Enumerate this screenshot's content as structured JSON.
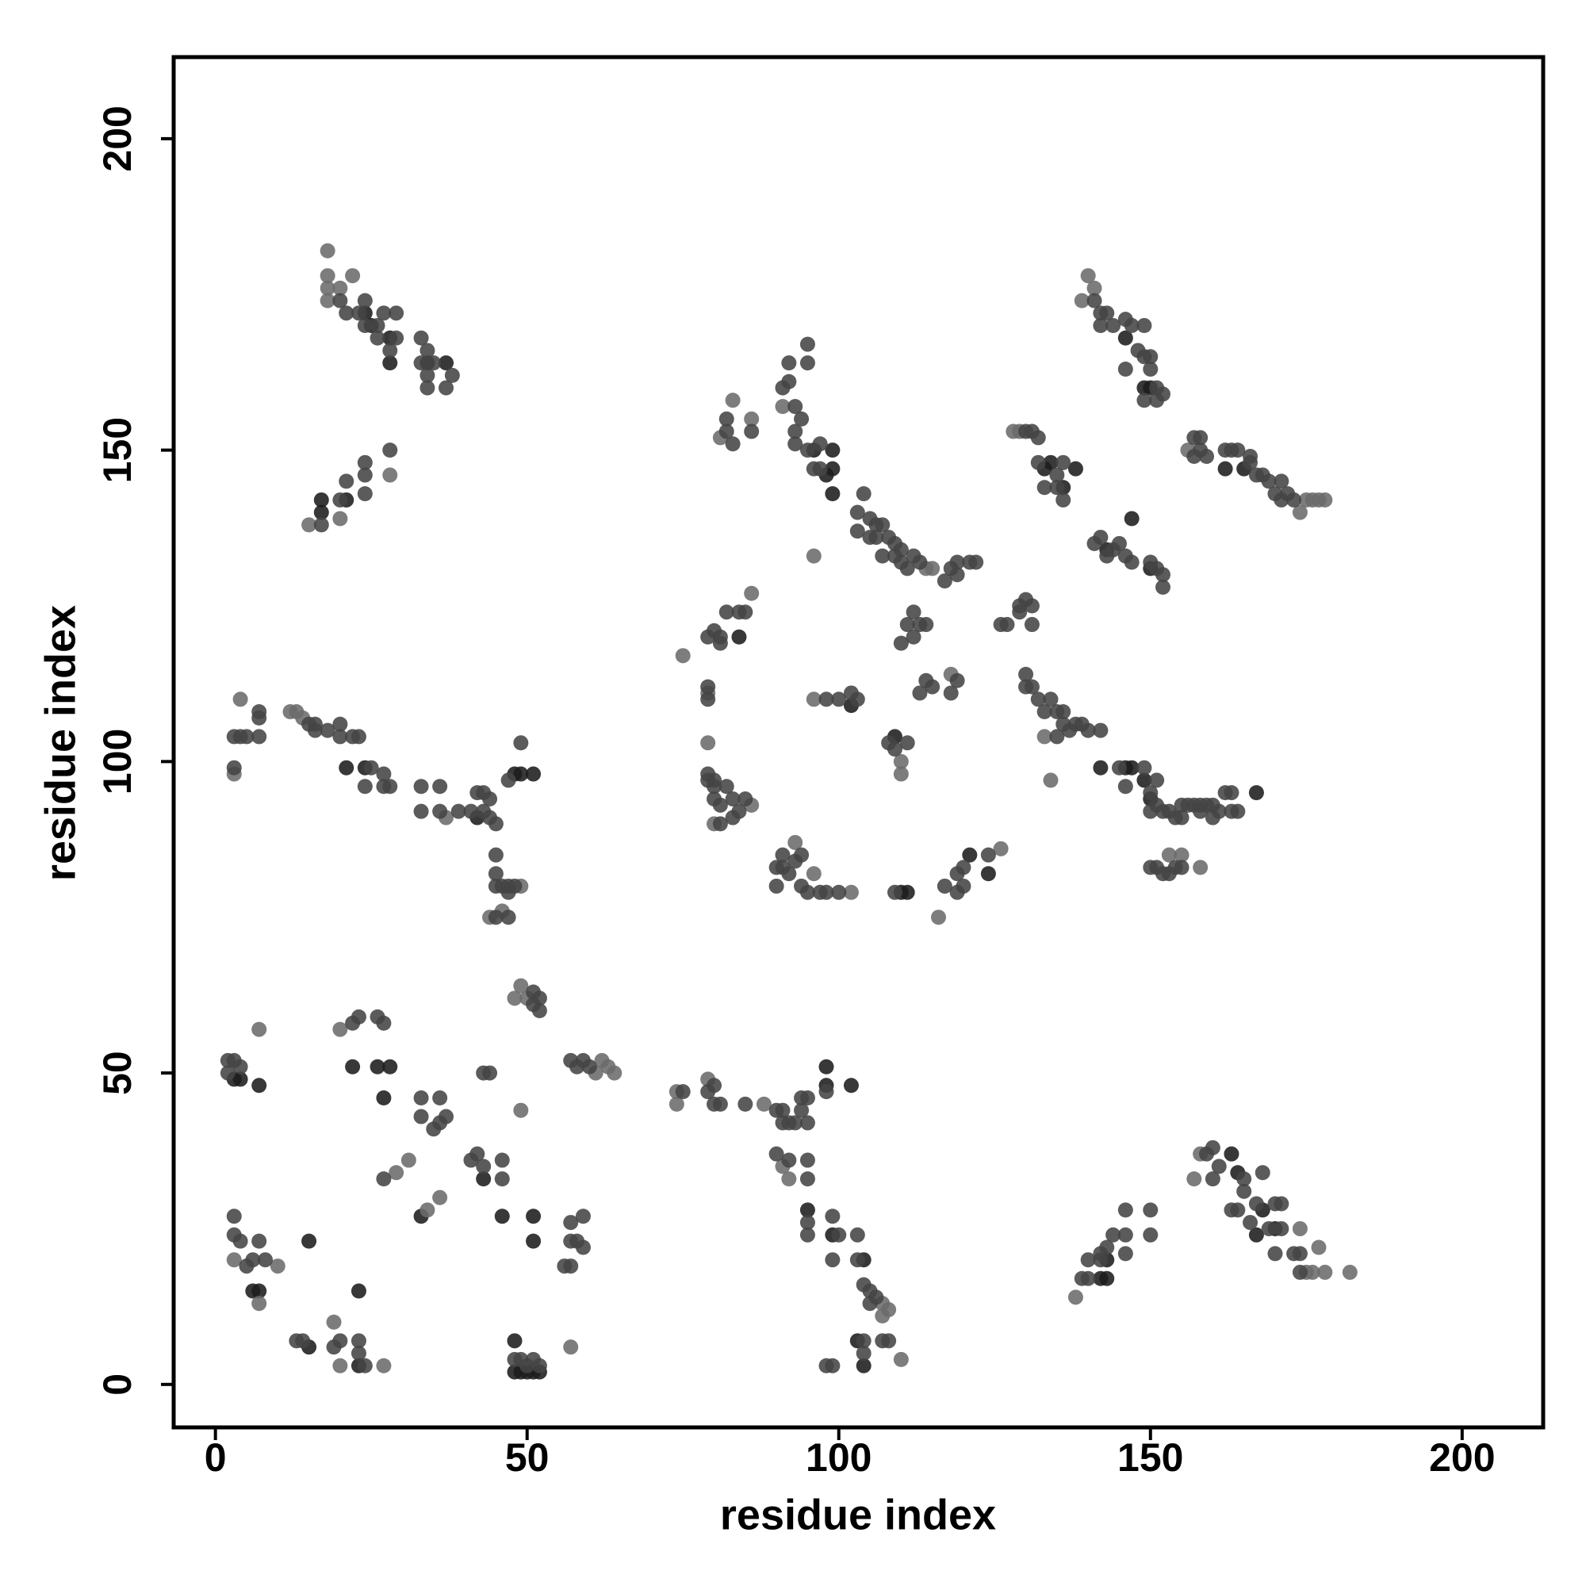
{
  "chart_data": {
    "type": "scatter",
    "xlabel": "residue index",
    "ylabel": "residue index",
    "xlim": [
      -6.7,
      213
    ],
    "ylim": [
      -6.9,
      213.1
    ],
    "xticks": [
      0,
      50,
      100,
      150,
      200
    ],
    "yticks": [
      0,
      50,
      100,
      150,
      200
    ],
    "grid": false,
    "series": [
      {
        "color": "#1c1c1c",
        "x": [
          17,
          17,
          21,
          24,
          25,
          28,
          28,
          34,
          37,
          22,
          26,
          28,
          27,
          3,
          4,
          7,
          24,
          21,
          42,
          48,
          49,
          51,
          48,
          49,
          50,
          51,
          52,
          48,
          51,
          51,
          46,
          98,
          98,
          102,
          95,
          99,
          103,
          104,
          143,
          143,
          142,
          163,
          164,
          167,
          168,
          170,
          96,
          99,
          99,
          98,
          99,
          133,
          134,
          136,
          138,
          143,
          147,
          150,
          142,
          146,
          147,
          149,
          150,
          110,
          111,
          121,
          124,
          84,
          109,
          102,
          146,
          149,
          150,
          162,
          165,
          15,
          23,
          23,
          15,
          6,
          7,
          33,
          43,
          104,
          167
        ],
        "values": [
          142,
          140,
          142,
          172,
          170,
          168,
          164,
          164,
          164,
          51,
          51,
          51,
          46,
          49,
          49,
          48,
          99,
          99,
          91,
          98,
          98,
          98,
          2,
          2,
          2,
          2,
          2,
          7,
          27,
          23,
          27,
          48,
          51,
          48,
          28,
          24,
          7,
          3,
          17,
          20,
          17,
          37,
          34,
          24,
          28,
          25,
          150,
          147,
          150,
          146,
          143,
          147,
          148,
          144,
          147,
          134,
          139,
          131,
          99,
          99,
          99,
          97,
          94,
          79,
          79,
          85,
          82,
          120,
          104,
          109,
          168,
          160,
          160,
          147,
          147,
          6,
          15,
          3,
          23,
          15,
          15,
          27,
          33,
          20,
          95
        ]
      },
      {
        "color": "#6b6b6b",
        "x": [
          18,
          18,
          18,
          18,
          22,
          20,
          15,
          20,
          28,
          4,
          3,
          12,
          13,
          14,
          37,
          44,
          46,
          49,
          48,
          49,
          50,
          49,
          61,
          62,
          63,
          64,
          7,
          20,
          31,
          29,
          36,
          34,
          3,
          7,
          10,
          19,
          20,
          27,
          57,
          74,
          74,
          79,
          88,
          91,
          92,
          107,
          107,
          108,
          110,
          138,
          182,
          177,
          178,
          176,
          175,
          174,
          158,
          157,
          75,
          86,
          79,
          79,
          86,
          80,
          93,
          96,
          102,
          116,
          126,
          110,
          110,
          118,
          96,
          96,
          115,
          114,
          81,
          83,
          86,
          91,
          140,
          139,
          141,
          175,
          176,
          177,
          178,
          174,
          156,
          128,
          129,
          134,
          133,
          158,
          155,
          153
        ],
        "values": [
          182,
          178,
          176,
          174,
          178,
          176,
          138,
          139,
          146,
          110,
          98,
          108,
          108,
          107,
          91,
          75,
          76,
          80,
          62,
          64,
          62,
          44,
          50,
          52,
          51,
          50,
          57,
          57,
          36,
          34,
          30,
          28,
          20,
          13,
          19,
          10,
          3,
          3,
          6,
          45,
          47,
          49,
          45,
          35,
          33,
          13,
          11,
          12,
          4,
          14,
          18,
          22,
          18,
          18,
          18,
          25,
          37,
          33,
          117,
          127,
          103,
          111,
          93,
          90,
          87,
          82,
          79,
          75,
          86,
          98,
          100,
          114,
          110,
          133,
          131,
          131,
          152,
          158,
          155,
          157,
          178,
          174,
          176,
          142,
          142,
          142,
          142,
          140,
          150,
          153,
          153,
          97,
          104,
          83,
          85,
          85
        ]
      },
      {
        "color": "#444444",
        "x": [
          20,
          21,
          23,
          24,
          24,
          26,
          26,
          27,
          28,
          29,
          29,
          33,
          33,
          34,
          34,
          34,
          35,
          37,
          38
        ],
        "values": [
          174,
          172,
          172,
          174,
          170,
          170,
          168,
          172,
          166,
          172,
          168,
          168,
          164,
          166,
          162,
          160,
          164,
          160,
          162
        ]
      },
      {
        "color": "#444444",
        "x": [
          17,
          20,
          21,
          24,
          24,
          24,
          28
        ],
        "values": [
          138,
          142,
          145,
          143,
          146,
          148,
          150
        ]
      },
      {
        "color": "#444444",
        "x": [
          3,
          4,
          3,
          5,
          7,
          7,
          7,
          15,
          16,
          16,
          18,
          20,
          20,
          22,
          23,
          24,
          25,
          27,
          27,
          28,
          33,
          33,
          36,
          36,
          39,
          41,
          42,
          43,
          43,
          44,
          44,
          45,
          45,
          45,
          45,
          46,
          47,
          47,
          48,
          45,
          47,
          49,
          47
        ],
        "values": [
          104,
          104,
          99,
          104,
          104,
          107,
          108,
          106,
          106,
          105,
          105,
          106,
          104,
          104,
          104,
          96,
          99,
          98,
          96,
          96,
          96,
          92,
          96,
          92,
          92,
          92,
          95,
          92,
          95,
          94,
          91,
          90,
          85,
          82,
          80,
          80,
          80,
          79,
          80,
          75,
          75,
          103,
          97
        ]
      },
      {
        "color": "#444444",
        "x": [
          2,
          2,
          3,
          4,
          22,
          23,
          26,
          27,
          33,
          33,
          36,
          36,
          35,
          37,
          43,
          44,
          51,
          51,
          52,
          52,
          57,
          58,
          59,
          60,
          27,
          41,
          42,
          43,
          46,
          46,
          56,
          57,
          57,
          57,
          58,
          59,
          59,
          3,
          3,
          4,
          5,
          6,
          7,
          8,
          13,
          14,
          19,
          20,
          23,
          23,
          24,
          48,
          49,
          50,
          51,
          52
        ],
        "values": [
          50,
          52,
          52,
          51,
          58,
          59,
          59,
          58,
          46,
          43,
          46,
          42,
          41,
          43,
          50,
          50,
          61,
          63,
          60,
          62,
          52,
          51,
          52,
          51,
          33,
          36,
          37,
          35,
          36,
          33,
          19,
          19,
          23,
          26,
          23,
          22,
          27,
          27,
          24,
          23,
          19,
          20,
          23,
          20,
          7,
          7,
          6,
          7,
          7,
          5,
          3,
          4,
          4,
          3,
          4,
          3
        ]
      },
      {
        "color": "#444444",
        "x": [
          75,
          79,
          80,
          80,
          81,
          85,
          90,
          91,
          91,
          92,
          93,
          94,
          94,
          95,
          95,
          98,
          90,
          92,
          95,
          95,
          95,
          95,
          99,
          99,
          100,
          103,
          103,
          104,
          105,
          105,
          106,
          107,
          108,
          104,
          104,
          98,
          99
        ],
        "values": [
          47,
          47,
          45,
          48,
          45,
          45,
          44,
          42,
          44,
          42,
          42,
          44,
          46,
          42,
          46,
          47,
          37,
          36,
          36,
          33,
          26,
          24,
          27,
          20,
          24,
          24,
          20,
          16,
          15,
          13,
          14,
          7,
          7,
          7,
          5,
          3,
          3
        ]
      },
      {
        "color": "#444444",
        "x": [
          139,
          140,
          140,
          142,
          142,
          143,
          144,
          146,
          146,
          146,
          150,
          150,
          159,
          160,
          160,
          161,
          163,
          164,
          165,
          165,
          166,
          167,
          168,
          169,
          170,
          170,
          171,
          171,
          173,
          174,
          174
        ],
        "values": [
          17,
          17,
          20,
          20,
          21,
          22,
          24,
          21,
          24,
          28,
          24,
          28,
          37,
          33,
          38,
          35,
          28,
          28,
          33,
          31,
          26,
          29,
          34,
          25,
          29,
          21,
          25,
          29,
          21,
          18,
          21
        ]
      },
      {
        "color": "#444444",
        "x": [
          79,
          79,
          79,
          80,
          81,
          81,
          82,
          84,
          85,
          79,
          79,
          80,
          80,
          80,
          81,
          81,
          82,
          83,
          83,
          84,
          85,
          90,
          90,
          91,
          91,
          92,
          93,
          94,
          94,
          95,
          97,
          98,
          100,
          109,
          117,
          119,
          119,
          120,
          120,
          124,
          98,
          100,
          102,
          103,
          108,
          109,
          111,
          113,
          114,
          115,
          118,
          119,
          110,
          111,
          112,
          112,
          113,
          114,
          117,
          118,
          119,
          119,
          121,
          122,
          126,
          127,
          129,
          129,
          130,
          131,
          131
        ],
        "values": [
          120,
          112,
          110,
          121,
          120,
          119,
          124,
          124,
          124,
          98,
          97,
          94,
          97,
          96,
          93,
          90,
          96,
          94,
          91,
          92,
          94,
          80,
          83,
          85,
          83,
          82,
          84,
          85,
          80,
          79,
          79,
          79,
          79,
          79,
          80,
          79,
          82,
          80,
          83,
          85,
          110,
          110,
          111,
          110,
          103,
          102,
          103,
          111,
          113,
          112,
          111,
          113,
          119,
          122,
          120,
          124,
          122,
          122,
          129,
          131,
          130,
          132,
          132,
          132,
          122,
          122,
          124,
          125,
          126,
          122,
          125
        ]
      },
      {
        "color": "#444444",
        "x": [
          130,
          131,
          132,
          132,
          133,
          135,
          135,
          136,
          136,
          141,
          142,
          143,
          144,
          145,
          146,
          147,
          150,
          151,
          152,
          152
        ],
        "values": [
          153,
          153,
          152,
          148,
          144,
          146,
          144,
          142,
          148,
          135,
          136,
          133,
          134,
          135,
          133,
          132,
          132,
          131,
          130,
          128
        ]
      },
      {
        "color": "#444444",
        "x": [
          82,
          82,
          83,
          86,
          91,
          92,
          92,
          93,
          93,
          93,
          94,
          95,
          95,
          95,
          96,
          97,
          97,
          103,
          103,
          104,
          105,
          105,
          106,
          106,
          107,
          107,
          108,
          109,
          109,
          110,
          110,
          111,
          112,
          113
        ],
        "values": [
          155,
          153,
          151,
          153,
          160,
          164,
          161,
          157,
          153,
          151,
          155,
          150,
          164,
          167,
          147,
          151,
          147,
          137,
          140,
          143,
          139,
          136,
          138,
          136,
          138,
          133,
          136,
          135,
          133,
          132,
          134,
          131,
          133,
          132
        ]
      },
      {
        "color": "#444444",
        "x": [
          141,
          142,
          142,
          143,
          144,
          146,
          146,
          147,
          148,
          149,
          149,
          149,
          150,
          150,
          151,
          151,
          152,
          157,
          157,
          158,
          158,
          159,
          162,
          163,
          164,
          166,
          166,
          167,
          168,
          169,
          170,
          171,
          171,
          172,
          173
        ],
        "values": [
          174,
          172,
          170,
          172,
          170,
          171,
          163,
          170,
          166,
          170,
          165,
          158,
          165,
          163,
          158,
          160,
          159,
          152,
          149,
          152,
          150,
          149,
          150,
          150,
          150,
          149,
          148,
          146,
          146,
          145,
          143,
          145,
          142,
          143,
          142
        ]
      },
      {
        "color": "#444444",
        "x": [
          130,
          130,
          131,
          132,
          133,
          134,
          135,
          135,
          136,
          136,
          137,
          138,
          139,
          140,
          142,
          145,
          146,
          149,
          150,
          150,
          151,
          151,
          152,
          153,
          154,
          155,
          155,
          156,
          157,
          158,
          158,
          159,
          160,
          160,
          161,
          162,
          163,
          163,
          164,
          150,
          151,
          152,
          153,
          154,
          155
        ],
        "values": [
          114,
          112,
          112,
          110,
          108,
          110,
          104,
          108,
          108,
          106,
          105,
          106,
          106,
          105,
          105,
          99,
          96,
          99,
          95,
          92,
          97,
          93,
          92,
          92,
          91,
          91,
          93,
          93,
          93,
          92,
          93,
          93,
          91,
          93,
          92,
          95,
          92,
          95,
          92,
          83,
          83,
          82,
          82,
          83,
          83
        ]
      }
    ]
  }
}
